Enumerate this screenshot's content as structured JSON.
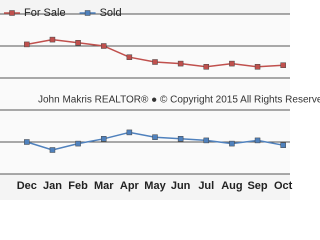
{
  "chart_data": {
    "type": "line",
    "categories": [
      "Dec",
      "Jan",
      "Feb",
      "Mar",
      "Apr",
      "May",
      "Jun",
      "Jul",
      "Aug",
      "Sep",
      "Oct"
    ],
    "series": [
      {
        "name": "For Sale",
        "color": "#c0504d",
        "values": [
          4.05,
          4.2,
          4.1,
          4.0,
          3.65,
          3.5,
          3.45,
          3.35,
          3.45,
          3.35,
          3.4
        ]
      },
      {
        "name": "Sold",
        "color": "#4f81bd",
        "values": [
          1.0,
          0.75,
          0.95,
          1.1,
          1.3,
          1.15,
          1.1,
          1.05,
          0.95,
          1.05,
          0.9
        ]
      }
    ],
    "annotation": "John Makris REALTOR®  ●  © Copyright 2015 All Rights Reserve",
    "ylim": [
      0,
      5
    ],
    "yticks": [
      0,
      1,
      2,
      3,
      4,
      5
    ],
    "grid": true,
    "legend": "top-left"
  }
}
